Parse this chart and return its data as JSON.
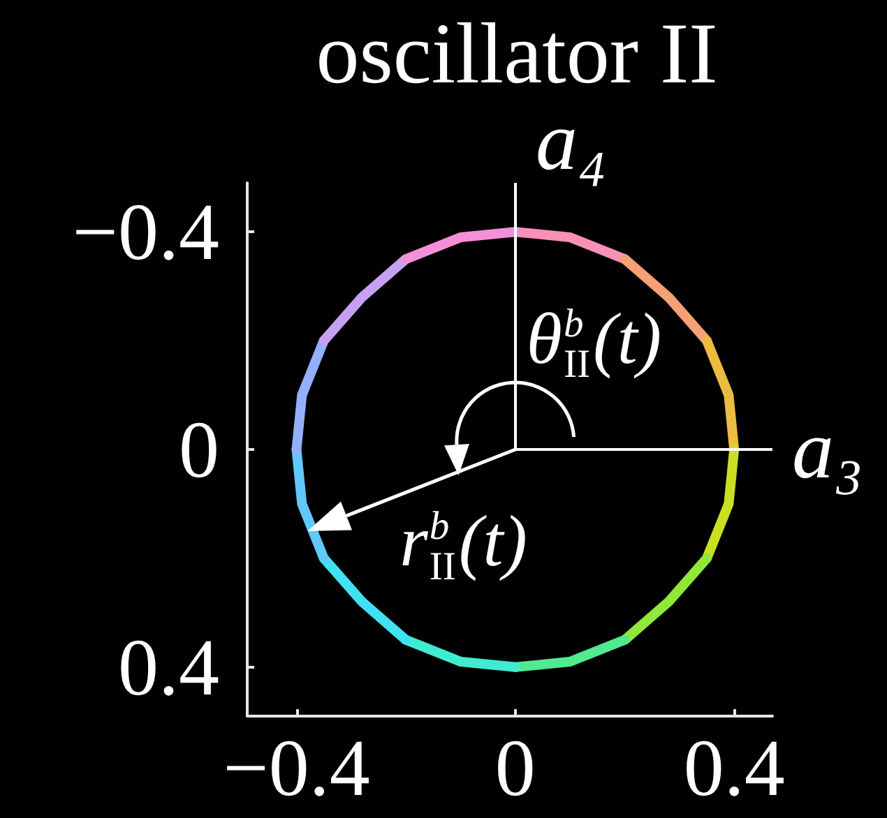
{
  "chart_data": {
    "type": "line",
    "title": "oscillator II",
    "series": [
      {
        "color": "#fa90b8",
        "x": [
          0,
          0.1,
          0.2
        ],
        "values": [
          -0.4,
          -0.39,
          -0.35
        ]
      },
      {
        "color": "#f6a078",
        "x": [
          0.2,
          0.28,
          0.35
        ],
        "values": [
          -0.35,
          -0.28,
          -0.2
        ]
      },
      {
        "color": "#ecbc40",
        "x": [
          0.35,
          0.39,
          0.4
        ],
        "values": [
          -0.2,
          -0.1,
          0
        ]
      },
      {
        "color": "#c8e020",
        "x": [
          0.4,
          0.39,
          0.35
        ],
        "values": [
          0,
          0.1,
          0.2
        ]
      },
      {
        "color": "#90e838",
        "x": [
          0.35,
          0.28,
          0.2
        ],
        "values": [
          0.2,
          0.28,
          0.35
        ]
      },
      {
        "color": "#50ea90",
        "x": [
          0.2,
          0.1,
          0
        ],
        "values": [
          0.35,
          0.39,
          0.4
        ]
      },
      {
        "color": "#40ecd0",
        "x": [
          0,
          -0.1,
          -0.2
        ],
        "values": [
          0.4,
          0.39,
          0.35
        ]
      },
      {
        "color": "#40e2f2",
        "x": [
          -0.2,
          -0.28,
          -0.35
        ],
        "values": [
          0.35,
          0.28,
          0.2
        ]
      },
      {
        "color": "#60c8fa",
        "x": [
          -0.35,
          -0.39,
          -0.4
        ],
        "values": [
          0.2,
          0.1,
          0
        ]
      },
      {
        "color": "#94b0fc",
        "x": [
          -0.4,
          -0.39,
          -0.35
        ],
        "values": [
          0,
          -0.1,
          -0.2
        ]
      },
      {
        "color": "#c8a0f2",
        "x": [
          -0.35,
          -0.28,
          -0.2
        ],
        "values": [
          -0.2,
          -0.28,
          -0.35
        ]
      },
      {
        "color": "#f490d8",
        "x": [
          -0.2,
          -0.1,
          0
        ],
        "values": [
          -0.35,
          -0.39,
          -0.4
        ]
      }
    ],
    "xlim": [
      -0.49,
      0.47
    ],
    "ylim": [
      0.49,
      -0.49
    ],
    "xticks": [
      {
        "value": -0.4,
        "label": "−0.4"
      },
      0,
      0.4
    ],
    "yticks": [
      {
        "value": -0.4,
        "label": "−0.4"
      },
      0,
      0.4
    ],
    "ref_lines": [
      {
        "axis": "y",
        "value": 0,
        "label": "a₃",
        "color": "#ffffff"
      },
      {
        "axis": "x",
        "value": 0,
        "label": "a₄",
        "color": "#ffffff"
      }
    ],
    "annotations": [
      {
        "text": "r$^{b}$$_{II}$(t)",
        "x": -0.38,
        "y": 0.15
      },
      "θ$^{b}$$_{II}$(t)"
    ]
  }
}
